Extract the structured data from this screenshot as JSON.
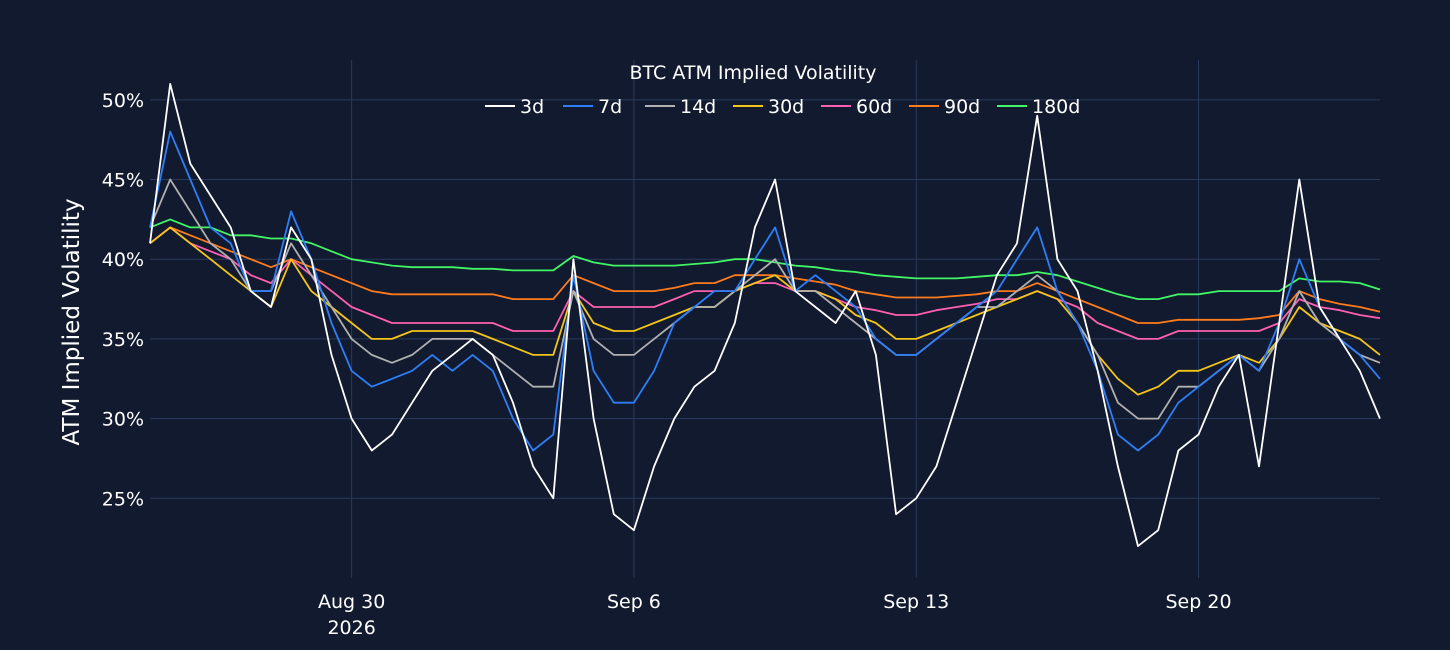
{
  "chart_data": {
    "type": "line",
    "title": "BTC ATM Implied Volatility",
    "ylabel": "ATM Implied Volatility",
    "xlabel": "",
    "ylim": [
      20,
      52.5
    ],
    "yticks": [
      25,
      30,
      35,
      40,
      45,
      50
    ],
    "ytick_labels": [
      "25%",
      "30%",
      "35%",
      "40%",
      "45%",
      "50%"
    ],
    "xlim": [
      "2026-08-25",
      "2026-09-24T12:00"
    ],
    "xticks": [
      "2026-08-30",
      "2026-09-06",
      "2026-09-13",
      "2026-09-20"
    ],
    "xtick_labels": [
      "Aug 30",
      "Sep 6",
      "Sep 13",
      "Sep 20"
    ],
    "xtick_year": "2026",
    "grid": true,
    "legend_position": "top-center",
    "x": [
      "2026-08-25",
      "2026-08-25T12:00",
      "2026-08-26",
      "2026-08-26T12:00",
      "2026-08-27",
      "2026-08-27T12:00",
      "2026-08-28",
      "2026-08-28T12:00",
      "2026-08-29",
      "2026-08-29T12:00",
      "2026-08-30",
      "2026-08-30T12:00",
      "2026-08-31",
      "2026-08-31T12:00",
      "2026-09-01",
      "2026-09-01T12:00",
      "2026-09-02",
      "2026-09-02T12:00",
      "2026-09-03",
      "2026-09-03T12:00",
      "2026-09-04",
      "2026-09-04T12:00",
      "2026-09-05",
      "2026-09-05T12:00",
      "2026-09-06",
      "2026-09-06T12:00",
      "2026-09-07",
      "2026-09-07T12:00",
      "2026-09-08",
      "2026-09-08T12:00",
      "2026-09-09",
      "2026-09-09T12:00",
      "2026-09-10",
      "2026-09-10T12:00",
      "2026-09-11",
      "2026-09-11T12:00",
      "2026-09-12",
      "2026-09-12T12:00",
      "2026-09-13",
      "2026-09-13T12:00",
      "2026-09-14",
      "2026-09-14T12:00",
      "2026-09-15",
      "2026-09-15T12:00",
      "2026-09-16",
      "2026-09-16T12:00",
      "2026-09-17",
      "2026-09-17T12:00",
      "2026-09-18",
      "2026-09-18T12:00",
      "2026-09-19",
      "2026-09-19T12:00",
      "2026-09-20",
      "2026-09-20T12:00",
      "2026-09-21",
      "2026-09-21T12:00",
      "2026-09-22",
      "2026-09-22T12:00",
      "2026-09-23",
      "2026-09-23T12:00",
      "2026-09-24",
      "2026-09-24T12:00"
    ],
    "series": [
      {
        "name": "3d",
        "color": "#ffffff",
        "values": [
          41,
          51,
          46,
          44,
          42,
          38,
          37,
          42,
          40,
          34,
          30,
          28,
          29,
          31,
          33,
          34,
          35,
          34,
          31,
          27,
          25,
          40,
          30,
          24,
          23,
          27,
          30,
          32,
          33,
          36,
          42,
          45,
          38,
          37,
          36,
          38,
          34,
          24,
          25,
          27,
          31,
          35,
          39,
          41,
          49,
          40,
          38,
          33,
          27,
          22,
          23,
          28,
          29,
          32,
          34,
          27,
          36,
          45,
          37,
          35,
          33,
          30
        ]
      },
      {
        "name": "7d",
        "color": "#2d7ff9",
        "values": [
          42,
          48,
          45,
          42,
          41,
          38,
          38,
          43,
          40,
          36,
          33,
          32,
          32.5,
          33,
          34,
          33,
          34,
          33,
          30,
          28,
          29,
          39,
          33,
          31,
          31,
          33,
          36,
          37,
          38,
          38,
          40,
          42,
          38,
          39,
          38,
          37,
          35,
          34,
          34,
          35,
          36,
          37,
          38,
          40,
          42,
          38,
          36,
          33,
          29,
          28,
          29,
          31,
          32,
          33,
          34,
          33,
          36,
          40,
          37,
          35,
          34,
          32.5
        ]
      },
      {
        "name": "14d",
        "color": "#b0b0b0",
        "values": [
          42,
          45,
          43,
          41,
          40,
          38,
          38,
          41,
          39,
          37,
          35,
          34,
          33.5,
          34,
          35,
          35,
          35,
          34,
          33,
          32,
          32,
          38,
          35,
          34,
          34,
          35,
          36,
          37,
          37,
          38,
          39,
          40,
          38,
          38,
          37,
          36,
          35,
          34,
          34,
          35,
          36,
          37,
          37,
          38,
          39,
          38,
          36,
          34,
          31,
          30,
          30,
          32,
          32,
          33,
          34,
          33,
          35,
          38,
          36,
          35,
          34,
          33.5
        ]
      },
      {
        "name": "30d",
        "color": "#f5c518",
        "values": [
          41,
          42,
          41,
          40,
          39,
          38,
          37,
          40,
          38,
          37,
          36,
          35,
          35,
          35.5,
          35.5,
          35.5,
          35.5,
          35,
          34.5,
          34,
          34,
          38,
          36,
          35.5,
          35.5,
          36,
          36.5,
          37,
          37,
          38,
          38.5,
          39,
          38,
          38,
          37.5,
          36.5,
          36,
          35,
          35,
          35.5,
          36,
          36.5,
          37,
          37.5,
          38,
          37.5,
          36,
          34,
          32.5,
          31.5,
          32,
          33,
          33,
          33.5,
          34,
          33.5,
          35,
          37,
          36,
          35.5,
          35,
          34
        ]
      },
      {
        "name": "60d",
        "color": "#ff5fb1",
        "values": [
          41,
          42,
          41,
          40.5,
          40,
          39,
          38.5,
          40,
          39,
          38,
          37,
          36.5,
          36,
          36,
          36,
          36,
          36,
          36,
          35.5,
          35.5,
          35.5,
          38,
          37,
          37,
          37,
          37,
          37.5,
          38,
          38,
          38,
          38.5,
          38.5,
          38,
          38,
          37.5,
          37,
          36.8,
          36.5,
          36.5,
          36.8,
          37,
          37.2,
          37.5,
          37.5,
          38,
          37.5,
          37,
          36,
          35.5,
          35,
          35,
          35.5,
          35.5,
          35.5,
          35.5,
          35.5,
          36,
          37.5,
          37,
          36.8,
          36.5,
          36.3
        ]
      },
      {
        "name": "90d",
        "color": "#ff7b1c",
        "values": [
          41,
          42,
          41.5,
          41,
          40.5,
          40,
          39.5,
          40,
          39.5,
          39,
          38.5,
          38,
          37.8,
          37.8,
          37.8,
          37.8,
          37.8,
          37.8,
          37.5,
          37.5,
          37.5,
          39,
          38.5,
          38,
          38,
          38,
          38.2,
          38.5,
          38.5,
          39,
          39,
          39,
          38.8,
          38.6,
          38.4,
          38,
          37.8,
          37.6,
          37.6,
          37.6,
          37.7,
          37.8,
          38,
          38,
          38.5,
          38,
          37.5,
          37,
          36.5,
          36,
          36,
          36.2,
          36.2,
          36.2,
          36.2,
          36.3,
          36.5,
          38,
          37.5,
          37.2,
          37,
          36.7
        ]
      },
      {
        "name": "180d",
        "color": "#42f566",
        "values": [
          42,
          42.5,
          42,
          42,
          41.5,
          41.5,
          41.3,
          41.3,
          41,
          40.5,
          40,
          39.8,
          39.6,
          39.5,
          39.5,
          39.5,
          39.4,
          39.4,
          39.3,
          39.3,
          39.3,
          40.2,
          39.8,
          39.6,
          39.6,
          39.6,
          39.6,
          39.7,
          39.8,
          40,
          40,
          39.8,
          39.6,
          39.5,
          39.3,
          39.2,
          39,
          38.9,
          38.8,
          38.8,
          38.8,
          38.9,
          39,
          39,
          39.2,
          39,
          38.6,
          38.2,
          37.8,
          37.5,
          37.5,
          37.8,
          37.8,
          38,
          38,
          38,
          38,
          38.8,
          38.6,
          38.6,
          38.5,
          38.1
        ]
      }
    ]
  }
}
